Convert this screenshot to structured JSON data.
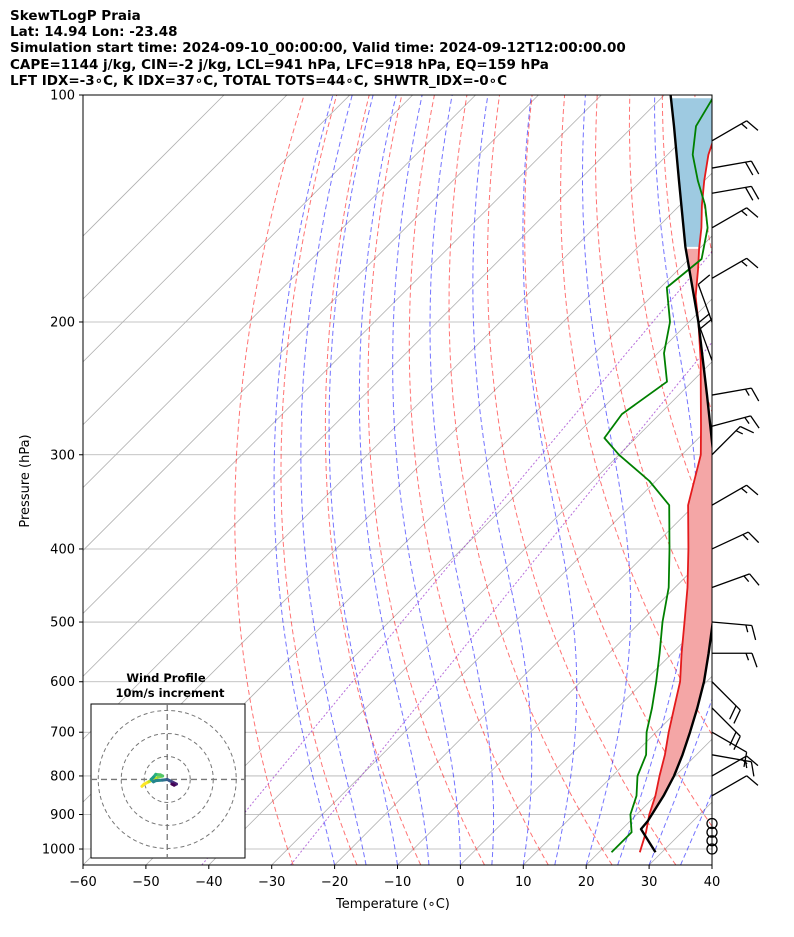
{
  "header": {
    "title": "SkewTLogP Praia",
    "location": "Lat: 14.94    Lon: -23.48",
    "times": "Simulation start time: 2024-09-10_00:00:00, Valid time: 2024-09-12T12:00:00.00",
    "indices1": "CAPE=1144 j/kg, CIN=-2 j/kg, LCL=941 hPa, LFC=918 hPa, EQ=159 hPa",
    "indices2": "LFT IDX=-3∘C, K IDX=37∘C, TOTAL TOTS=44∘C, SHWTR_IDX=-0∘C"
  },
  "chart_data": {
    "type": "line",
    "subtype": "skew-t log-p sounding",
    "xlabel": "Temperature (∘C)",
    "ylabel": "Pressure (hPa)",
    "xlim": [
      -60,
      40
    ],
    "ylim": [
      1050,
      100
    ],
    "x_ticks": [
      -60,
      -50,
      -40,
      -30,
      -20,
      -10,
      0,
      10,
      20,
      30,
      40
    ],
    "y_ticks": [
      1000,
      900,
      800,
      700,
      600,
      500,
      400,
      300,
      200,
      100
    ],
    "series": [
      {
        "name": "Temperature",
        "color": "#e41a1c",
        "points": [
          [
            1010,
            26.5
          ],
          [
            950,
            24.3
          ],
          [
            900,
            22.0
          ],
          [
            850,
            20.0
          ],
          [
            800,
            17.5
          ],
          [
            750,
            15.0
          ],
          [
            700,
            12.0
          ],
          [
            650,
            9.0
          ],
          [
            600,
            5.8
          ],
          [
            550,
            1.5
          ],
          [
            500,
            -3.0
          ],
          [
            450,
            -8.0
          ],
          [
            400,
            -14.0
          ],
          [
            350,
            -21.0
          ],
          [
            300,
            -27.0
          ],
          [
            275,
            -31.5
          ],
          [
            250,
            -36.5
          ],
          [
            225,
            -42.0
          ],
          [
            200,
            -48.5
          ],
          [
            185,
            -53.0
          ],
          [
            170,
            -57.0
          ],
          [
            160,
            -60.0
          ],
          [
            150,
            -63.0
          ],
          [
            140,
            -66.5
          ],
          [
            130,
            -70.0
          ],
          [
            120,
            -73.5
          ],
          [
            110,
            -76.5
          ],
          [
            100,
            -79.0
          ]
        ]
      },
      {
        "name": "Dewpoint",
        "color": "#008000",
        "points": [
          [
            1010,
            22.0
          ],
          [
            950,
            22.0
          ],
          [
            900,
            19.0
          ],
          [
            850,
            17.0
          ],
          [
            800,
            14.0
          ],
          [
            750,
            12.0
          ],
          [
            700,
            8.5
          ],
          [
            650,
            5.5
          ],
          [
            600,
            2.0
          ],
          [
            550,
            -2.0
          ],
          [
            500,
            -6.5
          ],
          [
            450,
            -11.0
          ],
          [
            400,
            -17.0
          ],
          [
            350,
            -24.0
          ],
          [
            325,
            -31.0
          ],
          [
            300,
            -40.0
          ],
          [
            285,
            -45.0
          ],
          [
            265,
            -46.0
          ],
          [
            240,
            -44.0
          ],
          [
            220,
            -49.0
          ],
          [
            200,
            -53.0
          ],
          [
            180,
            -59.0
          ],
          [
            165,
            -58.0
          ],
          [
            150,
            -62.0
          ],
          [
            140,
            -66.0
          ],
          [
            130,
            -71.0
          ],
          [
            120,
            -76.0
          ],
          [
            110,
            -80.0
          ],
          [
            100,
            -82.0
          ]
        ]
      },
      {
        "name": "Parcel",
        "color": "#000000",
        "points": [
          [
            1010,
            29.0
          ],
          [
            941,
            23.0
          ],
          [
            918,
            22.8
          ],
          [
            850,
            21.3
          ],
          [
            800,
            19.8
          ],
          [
            750,
            17.8
          ],
          [
            700,
            15.4
          ],
          [
            650,
            12.7
          ],
          [
            600,
            9.6
          ],
          [
            550,
            5.8
          ],
          [
            500,
            1.5
          ],
          [
            450,
            -3.4
          ],
          [
            400,
            -9.3
          ],
          [
            350,
            -16.5
          ],
          [
            300,
            -25.0
          ],
          [
            250,
            -35.5
          ],
          [
            200,
            -48.5
          ],
          [
            159,
            -62.5
          ],
          [
            130,
            -74.0
          ],
          [
            110,
            -83.5
          ],
          [
            100,
            -89.0
          ]
        ]
      }
    ],
    "shading": [
      {
        "name": "CAPE",
        "color": "#f4a6a6",
        "from_p": 918,
        "to_p": 159
      },
      {
        "name": "above EQ",
        "color": "#9ecae1",
        "from_p": 159,
        "to_p": 100
      }
    ],
    "wind_barbs": {
      "pressures": [
        1000,
        975,
        950,
        925,
        850,
        800,
        750,
        700,
        650,
        600,
        550,
        500,
        450,
        400,
        350,
        300,
        275,
        250,
        225,
        200,
        175,
        150,
        135,
        125,
        115
      ],
      "speeds_kt": [
        0,
        0,
        0,
        0,
        12,
        15,
        15,
        10,
        20,
        20,
        15,
        15,
        15,
        15,
        15,
        15,
        15,
        15,
        20,
        10,
        15,
        15,
        20,
        20,
        15
      ],
      "directions_deg": [
        0,
        0,
        0,
        0,
        60,
        60,
        100,
        120,
        135,
        135,
        90,
        95,
        70,
        65,
        60,
        45,
        75,
        80,
        340,
        340,
        60,
        60,
        80,
        80,
        60
      ]
    },
    "inset": {
      "title": "Wind Profile",
      "subtitle": "10m/s increment",
      "hodograph_uv": [
        [
          -11,
          -3
        ],
        [
          -10,
          -2
        ],
        [
          -8,
          -1
        ],
        [
          -6,
          0
        ],
        [
          -4,
          1
        ],
        [
          -2,
          1.5
        ],
        [
          -3,
          2
        ],
        [
          -5,
          2.2
        ],
        [
          -6,
          1
        ],
        [
          -7,
          0
        ],
        [
          -6,
          -1
        ],
        [
          -5,
          -0.5
        ],
        [
          -2,
          -0.3
        ],
        [
          0,
          0
        ],
        [
          1,
          -0.5
        ],
        [
          2,
          -1
        ],
        [
          3,
          -1.5
        ],
        [
          4,
          -2
        ],
        [
          3,
          -2.5
        ],
        [
          2,
          -2
        ]
      ]
    }
  }
}
